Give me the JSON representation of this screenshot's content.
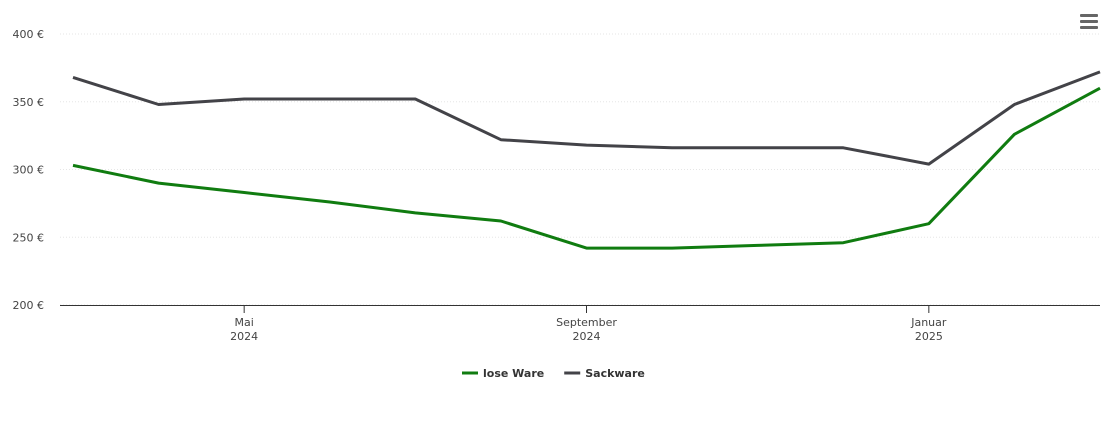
{
  "chart_data": {
    "type": "line",
    "x": [
      "2024-03",
      "2024-04",
      "2024-05",
      "2024-06",
      "2024-07",
      "2024-08",
      "2024-09",
      "2024-10",
      "2024-11",
      "2024-12",
      "2025-01",
      "2025-02",
      "2025-03"
    ],
    "series": [
      {
        "name": "lose Ware",
        "color": "#107c10",
        "values": [
          303,
          290,
          283,
          276,
          268,
          262,
          242,
          242,
          244,
          246,
          260,
          326,
          360
        ]
      },
      {
        "name": "Sackware",
        "color": "#434348",
        "values": [
          368,
          348,
          352,
          352,
          352,
          322,
          318,
          316,
          316,
          316,
          304,
          348,
          372
        ]
      }
    ],
    "xlim": [
      "2024-03",
      "2025-03"
    ],
    "xticks": [
      {
        "value": "2024-05",
        "label": [
          "Mai",
          "2024"
        ]
      },
      {
        "value": "2024-09",
        "label": [
          "September",
          "2024"
        ]
      },
      {
        "value": "2025-01",
        "label": [
          "Januar",
          "2025"
        ]
      }
    ],
    "ylim": [
      200,
      400
    ],
    "yticks": [
      {
        "value": 200,
        "label": "200 €"
      },
      {
        "value": 250,
        "label": "250 €"
      },
      {
        "value": 300,
        "label": "300 €"
      },
      {
        "value": 350,
        "label": "350 €"
      },
      {
        "value": 400,
        "label": "400 €"
      }
    ],
    "grid": true
  }
}
